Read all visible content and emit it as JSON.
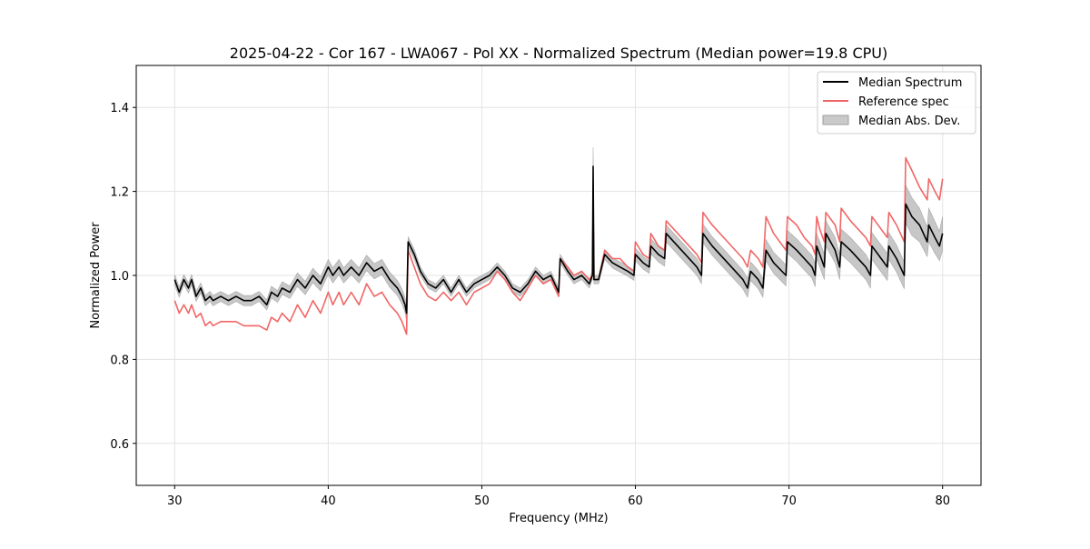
{
  "chart_data": {
    "type": "line",
    "title": "2025-04-22 - Cor 167 - LWA067 - Pol XX - Normalized Spectrum (Median power=19.8 CPU)",
    "xlabel": "Frequency (MHz)",
    "ylabel": "Normalized Power",
    "xlim": [
      27.5,
      82.5
    ],
    "ylim": [
      0.5,
      1.5
    ],
    "xticks": [
      30,
      40,
      50,
      60,
      70,
      80
    ],
    "yticks": [
      0.6,
      0.8,
      1.0,
      1.2,
      1.4
    ],
    "xtick_labels": [
      "30",
      "40",
      "50",
      "60",
      "70",
      "80"
    ],
    "ytick_labels": [
      "0.6",
      "0.8",
      "1.0",
      "1.2",
      "1.4"
    ],
    "grid": true,
    "legend_position": "top-right",
    "legend": [
      "Median Spectrum",
      "Reference spec",
      "Median Abs. Dev."
    ],
    "series": [
      {
        "name": "Median Spectrum",
        "color": "#000000",
        "x": [
          30.0,
          30.3,
          30.6,
          30.9,
          31.1,
          31.4,
          31.7,
          32.0,
          32.3,
          32.5,
          33.0,
          33.5,
          34.0,
          34.5,
          35.0,
          35.5,
          36.0,
          36.3,
          36.7,
          37.0,
          37.5,
          38.0,
          38.5,
          39.0,
          39.5,
          40.0,
          40.3,
          40.7,
          41.0,
          41.5,
          42.0,
          42.5,
          43.0,
          43.5,
          44.0,
          44.5,
          44.8,
          45.0,
          45.1,
          45.2,
          45.6,
          46.0,
          46.5,
          47.0,
          47.5,
          48.0,
          48.5,
          49.0,
          49.5,
          50.0,
          50.5,
          51.0,
          51.5,
          52.0,
          52.5,
          53.0,
          53.5,
          54.0,
          54.5,
          55.0,
          55.1,
          55.6,
          56.0,
          56.5,
          57.0,
          57.2,
          57.25,
          57.3,
          57.6,
          58.0,
          58.5,
          59.0,
          59.5,
          59.9,
          60.0,
          60.5,
          60.9,
          61.0,
          61.5,
          61.9,
          62.0,
          63.0,
          64.0,
          64.3,
          64.4,
          65.0,
          66.0,
          67.0,
          67.3,
          67.5,
          68.0,
          68.3,
          68.5,
          69.0,
          69.8,
          69.9,
          70.5,
          71.0,
          71.5,
          71.7,
          71.8,
          72.0,
          72.3,
          72.4,
          73.0,
          73.3,
          73.4,
          74.0,
          75.0,
          75.3,
          75.4,
          76.0,
          76.4,
          76.5,
          77.0,
          77.5,
          77.6,
          78.0,
          78.5,
          79.0,
          79.1,
          79.5,
          79.8,
          80.0
        ],
        "y": [
          0.99,
          0.96,
          0.99,
          0.97,
          0.99,
          0.95,
          0.97,
          0.94,
          0.95,
          0.94,
          0.95,
          0.94,
          0.95,
          0.94,
          0.94,
          0.95,
          0.93,
          0.96,
          0.95,
          0.97,
          0.96,
          0.99,
          0.97,
          1.0,
          0.98,
          1.02,
          1.0,
          1.02,
          1.0,
          1.02,
          1.0,
          1.03,
          1.01,
          1.02,
          0.99,
          0.97,
          0.95,
          0.93,
          0.91,
          1.08,
          1.05,
          1.01,
          0.98,
          0.97,
          0.99,
          0.96,
          0.99,
          0.96,
          0.98,
          0.99,
          1.0,
          1.02,
          1.0,
          0.97,
          0.96,
          0.98,
          1.01,
          0.99,
          1.0,
          0.96,
          1.04,
          1.01,
          0.99,
          1.0,
          0.98,
          1.0,
          1.26,
          0.99,
          0.99,
          1.05,
          1.03,
          1.02,
          1.01,
          1.0,
          1.05,
          1.03,
          1.02,
          1.07,
          1.05,
          1.04,
          1.1,
          1.06,
          1.02,
          1.0,
          1.1,
          1.07,
          1.03,
          0.99,
          0.97,
          1.01,
          0.99,
          0.97,
          1.06,
          1.03,
          1.0,
          1.08,
          1.06,
          1.04,
          1.02,
          1.0,
          1.07,
          1.05,
          1.02,
          1.1,
          1.06,
          1.02,
          1.08,
          1.06,
          1.02,
          1.0,
          1.07,
          1.04,
          1.02,
          1.07,
          1.04,
          1.0,
          1.17,
          1.14,
          1.12,
          1.08,
          1.12,
          1.09,
          1.07,
          1.1
        ]
      },
      {
        "name": "Reference spec",
        "color": "#f16666",
        "x": [
          30.0,
          30.3,
          30.6,
          30.9,
          31.1,
          31.4,
          31.7,
          32.0,
          32.3,
          32.5,
          33.0,
          33.5,
          34.0,
          34.5,
          35.0,
          35.5,
          36.0,
          36.3,
          36.7,
          37.0,
          37.5,
          38.0,
          38.5,
          39.0,
          39.5,
          40.0,
          40.3,
          40.7,
          41.0,
          41.5,
          42.0,
          42.5,
          43.0,
          43.5,
          44.0,
          44.5,
          44.8,
          45.0,
          45.1,
          45.2,
          45.6,
          46.0,
          46.5,
          47.0,
          47.5,
          48.0,
          48.5,
          49.0,
          49.5,
          50.0,
          50.5,
          51.0,
          51.5,
          52.0,
          52.5,
          53.0,
          53.5,
          54.0,
          54.5,
          55.0,
          55.1,
          55.6,
          56.0,
          56.5,
          57.0,
          57.2,
          57.25,
          57.3,
          57.6,
          58.0,
          58.5,
          59.0,
          59.5,
          59.9,
          60.0,
          60.5,
          60.9,
          61.0,
          61.5,
          61.9,
          62.0,
          63.0,
          64.0,
          64.3,
          64.4,
          65.0,
          66.0,
          67.0,
          67.3,
          67.5,
          68.0,
          68.3,
          68.5,
          69.0,
          69.8,
          69.9,
          70.5,
          71.0,
          71.5,
          71.7,
          71.8,
          72.0,
          72.3,
          72.4,
          73.0,
          73.3,
          73.4,
          74.0,
          75.0,
          75.3,
          75.4,
          76.0,
          76.4,
          76.5,
          77.0,
          77.5,
          77.6,
          78.0,
          78.5,
          79.0,
          79.1,
          79.5,
          79.8,
          80.0
        ],
        "y": [
          0.94,
          0.91,
          0.93,
          0.91,
          0.93,
          0.9,
          0.91,
          0.88,
          0.89,
          0.88,
          0.89,
          0.89,
          0.89,
          0.88,
          0.88,
          0.88,
          0.87,
          0.9,
          0.89,
          0.91,
          0.89,
          0.93,
          0.9,
          0.94,
          0.91,
          0.96,
          0.93,
          0.96,
          0.93,
          0.96,
          0.93,
          0.98,
          0.95,
          0.96,
          0.93,
          0.91,
          0.89,
          0.87,
          0.86,
          1.06,
          1.02,
          0.98,
          0.95,
          0.94,
          0.96,
          0.94,
          0.96,
          0.93,
          0.96,
          0.97,
          0.98,
          1.01,
          0.99,
          0.96,
          0.94,
          0.97,
          1.0,
          0.98,
          0.99,
          0.95,
          1.04,
          1.02,
          1.0,
          1.01,
          0.99,
          1.0,
          1.16,
          0.99,
          0.99,
          1.06,
          1.04,
          1.04,
          1.02,
          1.01,
          1.08,
          1.05,
          1.04,
          1.1,
          1.07,
          1.06,
          1.13,
          1.09,
          1.05,
          1.03,
          1.15,
          1.12,
          1.08,
          1.04,
          1.02,
          1.06,
          1.04,
          1.02,
          1.14,
          1.1,
          1.06,
          1.14,
          1.12,
          1.09,
          1.07,
          1.05,
          1.14,
          1.11,
          1.08,
          1.15,
          1.12,
          1.08,
          1.16,
          1.13,
          1.09,
          1.07,
          1.14,
          1.11,
          1.09,
          1.15,
          1.12,
          1.08,
          1.28,
          1.25,
          1.21,
          1.18,
          1.23,
          1.2,
          1.18,
          1.23
        ]
      }
    ],
    "band": {
      "name": "Median Abs. Dev.",
      "color": "#bdbdbd",
      "half_width": [
        0.012,
        0.012,
        0.012,
        0.012,
        0.012,
        0.012,
        0.012,
        0.012,
        0.012,
        0.012,
        0.012,
        0.012,
        0.012,
        0.012,
        0.012,
        0.012,
        0.012,
        0.014,
        0.014,
        0.015,
        0.015,
        0.016,
        0.016,
        0.017,
        0.017,
        0.018,
        0.018,
        0.018,
        0.018,
        0.018,
        0.018,
        0.018,
        0.018,
        0.018,
        0.018,
        0.018,
        0.018,
        0.018,
        0.018,
        0.012,
        0.012,
        0.01,
        0.01,
        0.01,
        0.01,
        0.01,
        0.01,
        0.01,
        0.01,
        0.01,
        0.01,
        0.01,
        0.01,
        0.01,
        0.01,
        0.01,
        0.01,
        0.01,
        0.01,
        0.01,
        0.01,
        0.01,
        0.01,
        0.01,
        0.01,
        0.01,
        0.045,
        0.01,
        0.01,
        0.012,
        0.012,
        0.012,
        0.012,
        0.012,
        0.015,
        0.015,
        0.015,
        0.018,
        0.018,
        0.018,
        0.02,
        0.02,
        0.02,
        0.02,
        0.022,
        0.022,
        0.022,
        0.022,
        0.022,
        0.022,
        0.022,
        0.022,
        0.025,
        0.025,
        0.025,
        0.027,
        0.027,
        0.027,
        0.027,
        0.027,
        0.03,
        0.03,
        0.03,
        0.03,
        0.03,
        0.03,
        0.03,
        0.03,
        0.03,
        0.03,
        0.032,
        0.032,
        0.032,
        0.032,
        0.032,
        0.032,
        0.045,
        0.045,
        0.04,
        0.035,
        0.04,
        0.038,
        0.035,
        0.04
      ]
    }
  }
}
